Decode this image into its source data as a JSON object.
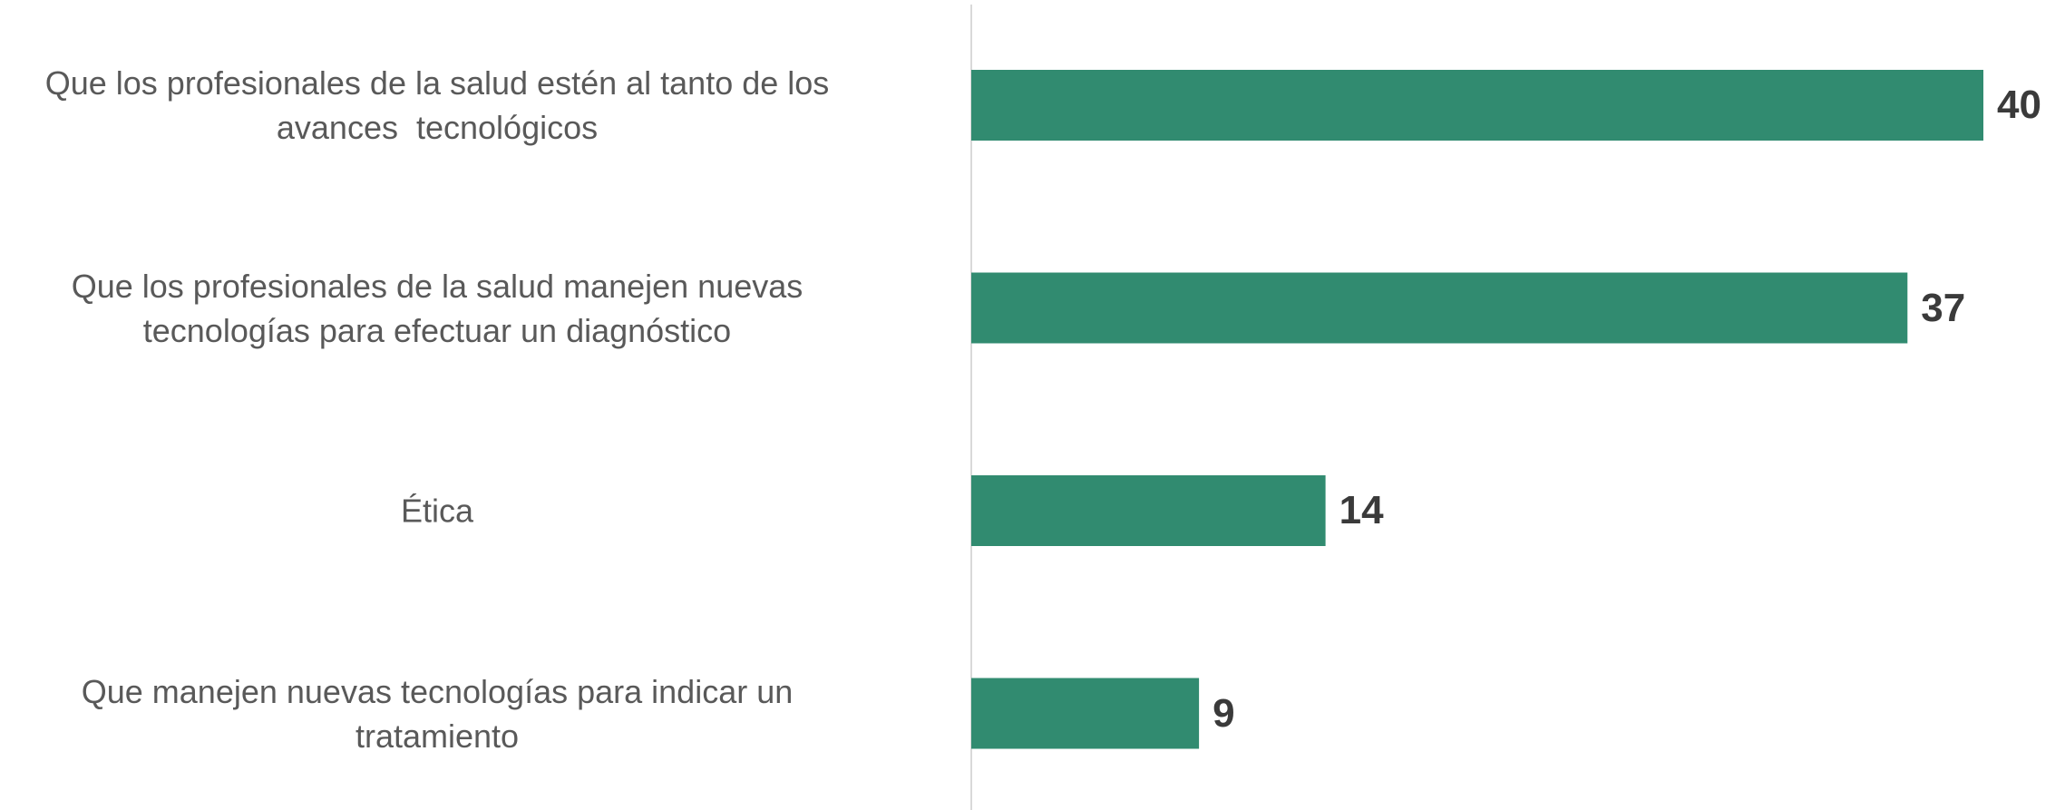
{
  "chart_data": {
    "type": "bar",
    "orientation": "horizontal",
    "categories": [
      "Que los profesionales de la salud estén al tanto de los\navances  tecnológicos",
      "Que los profesionales de la salud manejen nuevas\ntecnologías para efectuar un diagnóstico",
      "Ética",
      "Que manejen nuevas tecnologías para indicar un\ntratamiento"
    ],
    "values": [
      40,
      37,
      14,
      9
    ],
    "color": "#318b70"
  }
}
